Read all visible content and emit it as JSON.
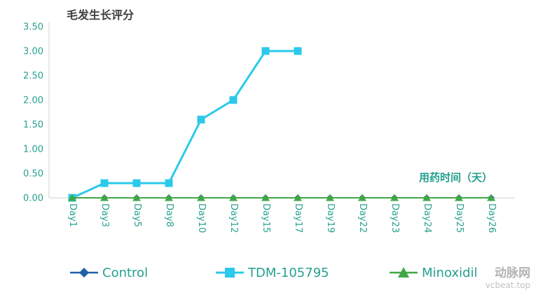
{
  "chart_data": {
    "type": "line",
    "title": "毛发生长评分",
    "xlabel": "用药时间（天）",
    "ylabel": "",
    "categories": [
      "Day1",
      "Day3",
      "Day5",
      "Day8",
      "Day10",
      "Day12",
      "Day15",
      "Day17",
      "Day19",
      "Day22",
      "Day23",
      "Day24",
      "Day25",
      "Day26"
    ],
    "ylim": [
      0,
      3.5
    ],
    "yticks": [
      0,
      0.5,
      1,
      1.5,
      2,
      2.5,
      3,
      3.5
    ],
    "ytick_labels": [
      "0.00",
      "0.50",
      "1.00",
      "1.50",
      "2.00",
      "2.50",
      "3.00",
      "3.50"
    ],
    "grid": false,
    "legend_position": "bottom",
    "series": [
      {
        "name": "Control",
        "marker": "diamond",
        "color": "#1f5fa8",
        "values": [
          0,
          0,
          0,
          0,
          0,
          0,
          0,
          0,
          0,
          0,
          0,
          0,
          0,
          0
        ]
      },
      {
        "name": "TDM-105795",
        "marker": "square",
        "color": "#2bc9ea",
        "values": [
          0,
          0.3,
          0.3,
          0.3,
          1.6,
          2.0,
          3.0,
          3.0,
          null,
          null,
          null,
          null,
          null,
          null
        ]
      },
      {
        "name": "Minoxidil",
        "marker": "triangle",
        "color": "#3fa845",
        "values": [
          0,
          0,
          0,
          0,
          0,
          0,
          0,
          0,
          0,
          0,
          0,
          0,
          0,
          0
        ]
      }
    ]
  },
  "colors": {
    "axis_text": "#26a08f",
    "axis_line": "#d9d9d9",
    "title_text": "#3f3f3f",
    "watermark": "#b3b3b3"
  },
  "watermark": {
    "name": "动脉网",
    "site": "vcbeat.top"
  }
}
